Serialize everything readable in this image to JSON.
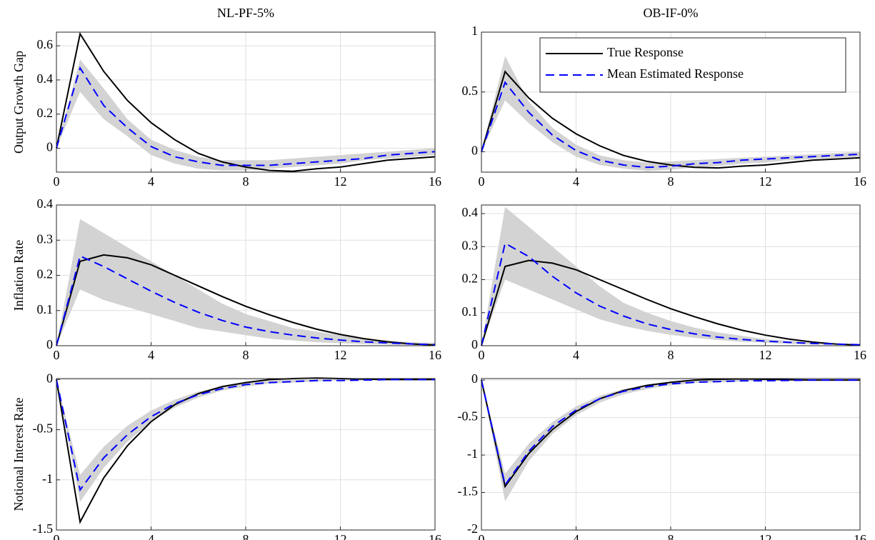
{
  "chart_data": [
    {
      "type": "line",
      "title": "NL-PF-5%",
      "ylabel": "Output Growth Gap",
      "x": [
        0,
        1,
        2,
        3,
        4,
        5,
        6,
        7,
        8,
        9,
        10,
        11,
        12,
        13,
        14,
        15,
        16
      ],
      "xlim": [
        0,
        16
      ],
      "xticks": [
        0,
        4,
        8,
        12,
        16
      ],
      "ylim": [
        -0.14,
        0.68
      ],
      "yticks": [
        0,
        0.2,
        0.4,
        0.6
      ],
      "grid": true,
      "band": {
        "color": "#d3d3d3",
        "lower": [
          0,
          0.33,
          0.17,
          0.07,
          -0.04,
          -0.09,
          -0.12,
          -0.13,
          -0.13,
          -0.12,
          -0.11,
          -0.1,
          -0.09,
          -0.07,
          -0.06,
          -0.05,
          -0.04
        ],
        "upper": [
          0,
          0.52,
          0.35,
          0.17,
          0.05,
          -0.01,
          -0.05,
          -0.07,
          -0.07,
          -0.07,
          -0.06,
          -0.05,
          -0.04,
          -0.03,
          -0.02,
          -0.01,
          0
        ]
      },
      "series": [
        {
          "color": "#000000",
          "dash": false,
          "values": [
            0,
            0.67,
            0.45,
            0.28,
            0.15,
            0.05,
            -0.03,
            -0.08,
            -0.11,
            -0.13,
            -0.135,
            -0.12,
            -0.11,
            -0.09,
            -0.07,
            -0.06,
            -0.05
          ]
        },
        {
          "color": "#0000ff",
          "dash": true,
          "values": [
            0,
            0.47,
            0.25,
            0.12,
            0.01,
            -0.05,
            -0.08,
            -0.1,
            -0.1,
            -0.1,
            -0.09,
            -0.08,
            -0.07,
            -0.06,
            -0.04,
            -0.03,
            -0.02
          ]
        }
      ]
    },
    {
      "type": "line",
      "title": "OB-IF-0%",
      "x": [
        0,
        1,
        2,
        3,
        4,
        5,
        6,
        7,
        8,
        9,
        10,
        11,
        12,
        13,
        14,
        15,
        16
      ],
      "xlim": [
        0,
        16
      ],
      "xticks": [
        0,
        4,
        8,
        12,
        16
      ],
      "ylim": [
        -0.17,
        1
      ],
      "yticks": [
        0,
        0.5,
        1
      ],
      "grid": true,
      "legend": "upper right",
      "band": {
        "color": "#d3d3d3",
        "lower": [
          0,
          0.43,
          0.24,
          0.08,
          -0.04,
          -0.11,
          -0.14,
          -0.16,
          -0.15,
          -0.13,
          -0.12,
          -0.1,
          -0.09,
          -0.07,
          -0.06,
          -0.05,
          -0.04
        ],
        "upper": [
          0,
          0.8,
          0.42,
          0.2,
          0.06,
          -0.03,
          -0.07,
          -0.09,
          -0.08,
          -0.07,
          -0.06,
          -0.05,
          -0.04,
          -0.03,
          -0.02,
          -0.01,
          0
        ]
      },
      "series": [
        {
          "name": "True Response",
          "color": "#000000",
          "dash": false,
          "values": [
            0,
            0.67,
            0.45,
            0.28,
            0.15,
            0.05,
            -0.03,
            -0.08,
            -0.11,
            -0.13,
            -0.135,
            -0.12,
            -0.11,
            -0.09,
            -0.07,
            -0.06,
            -0.05
          ]
        },
        {
          "name": "Mean Estimated Response",
          "color": "#0000ff",
          "dash": true,
          "values": [
            0,
            0.58,
            0.33,
            0.14,
            0.01,
            -0.07,
            -0.11,
            -0.13,
            -0.12,
            -0.1,
            -0.09,
            -0.07,
            -0.06,
            -0.05,
            -0.04,
            -0.03,
            -0.02
          ]
        }
      ]
    },
    {
      "type": "line",
      "ylabel": "Inflation Rate",
      "x": [
        0,
        1,
        2,
        3,
        4,
        5,
        6,
        7,
        8,
        9,
        10,
        11,
        12,
        13,
        14,
        15,
        16
      ],
      "xlim": [
        0,
        16
      ],
      "xticks": [
        0,
        4,
        8,
        12,
        16
      ],
      "ylim": [
        0,
        0.4
      ],
      "yticks": [
        0,
        0.1,
        0.2,
        0.3,
        0.4
      ],
      "grid": true,
      "band": {
        "color": "#d3d3d3",
        "lower": [
          0,
          0.16,
          0.13,
          0.11,
          0.09,
          0.07,
          0.05,
          0.04,
          0.03,
          0.02,
          0.015,
          0.01,
          0.007,
          0.005,
          0.003,
          0.002,
          0.001
        ],
        "upper": [
          0,
          0.36,
          0.32,
          0.28,
          0.24,
          0.2,
          0.16,
          0.12,
          0.09,
          0.07,
          0.05,
          0.04,
          0.03,
          0.02,
          0.015,
          0.01,
          0.008
        ]
      },
      "series": [
        {
          "color": "#000000",
          "dash": false,
          "values": [
            0,
            0.24,
            0.258,
            0.25,
            0.23,
            0.2,
            0.17,
            0.14,
            0.112,
            0.088,
            0.066,
            0.047,
            0.032,
            0.02,
            0.011,
            0.005,
            0.002
          ]
        },
        {
          "color": "#0000ff",
          "dash": true,
          "values": [
            0,
            0.255,
            0.225,
            0.19,
            0.155,
            0.123,
            0.095,
            0.072,
            0.053,
            0.04,
            0.03,
            0.022,
            0.016,
            0.011,
            0.008,
            0.005,
            0.003
          ]
        }
      ]
    },
    {
      "type": "line",
      "x": [
        0,
        1,
        2,
        3,
        4,
        5,
        6,
        7,
        8,
        9,
        10,
        11,
        12,
        13,
        14,
        15,
        16
      ],
      "xlim": [
        0,
        16
      ],
      "xticks": [
        0,
        4,
        8,
        12,
        16
      ],
      "ylim": [
        0,
        0.426
      ],
      "yticks": [
        0,
        0.1,
        0.2,
        0.3,
        0.4
      ],
      "grid": true,
      "band": {
        "color": "#d3d3d3",
        "lower": [
          0,
          0.2,
          0.17,
          0.14,
          0.11,
          0.08,
          0.06,
          0.045,
          0.033,
          0.024,
          0.017,
          0.012,
          0.009,
          0.006,
          0.004,
          0.003,
          0.002
        ],
        "upper": [
          0,
          0.42,
          0.36,
          0.3,
          0.24,
          0.18,
          0.13,
          0.1,
          0.075,
          0.055,
          0.04,
          0.03,
          0.02,
          0.015,
          0.01,
          0.007,
          0.005
        ]
      },
      "series": [
        {
          "color": "#000000",
          "dash": false,
          "values": [
            0,
            0.24,
            0.258,
            0.25,
            0.23,
            0.2,
            0.17,
            0.14,
            0.112,
            0.088,
            0.066,
            0.047,
            0.032,
            0.02,
            0.011,
            0.005,
            0.002
          ]
        },
        {
          "color": "#0000ff",
          "dash": true,
          "values": [
            0,
            0.31,
            0.27,
            0.21,
            0.16,
            0.12,
            0.09,
            0.066,
            0.049,
            0.036,
            0.026,
            0.019,
            0.014,
            0.01,
            0.007,
            0.005,
            0.003
          ]
        }
      ]
    },
    {
      "type": "line",
      "ylabel": "Notional Interest Rate",
      "x": [
        0,
        1,
        2,
        3,
        4,
        5,
        6,
        7,
        8,
        9,
        10,
        11,
        12,
        13,
        14,
        15,
        16
      ],
      "xlim": [
        0,
        16
      ],
      "xticks": [
        0,
        4,
        8,
        12,
        16
      ],
      "ylim": [
        -1.5,
        0.01
      ],
      "yticks": [
        -1.5,
        -1,
        -0.5,
        0
      ],
      "grid": true,
      "band": {
        "color": "#d3d3d3",
        "lower": [
          0,
          -1.22,
          -0.88,
          -0.62,
          -0.42,
          -0.28,
          -0.18,
          -0.11,
          -0.07,
          -0.04,
          -0.03,
          -0.02,
          -0.01,
          -0.01,
          -0.005,
          0,
          0
        ],
        "upper": [
          0,
          -0.95,
          -0.67,
          -0.46,
          -0.31,
          -0.2,
          -0.12,
          -0.07,
          -0.03,
          -0.01,
          0,
          0,
          0,
          0,
          0,
          0,
          0
        ]
      },
      "series": [
        {
          "color": "#000000",
          "dash": false,
          "values": [
            0,
            -1.42,
            -0.98,
            -0.66,
            -0.42,
            -0.25,
            -0.14,
            -0.07,
            -0.03,
            0,
            0.01,
            0.015,
            0.01,
            0.005,
            0,
            0,
            0
          ]
        },
        {
          "color": "#0000ff",
          "dash": true,
          "values": [
            0,
            -1.1,
            -0.78,
            -0.55,
            -0.37,
            -0.24,
            -0.15,
            -0.09,
            -0.05,
            -0.03,
            -0.02,
            -0.01,
            -0.01,
            -0.005,
            0,
            0,
            0
          ]
        }
      ]
    },
    {
      "type": "line",
      "x": [
        0,
        1,
        2,
        3,
        4,
        5,
        6,
        7,
        8,
        9,
        10,
        11,
        12,
        13,
        14,
        15,
        16
      ],
      "xlim": [
        0,
        16
      ],
      "xticks": [
        0,
        4,
        8,
        12,
        16
      ],
      "ylim": [
        -2,
        0.02
      ],
      "yticks": [
        -2,
        -1.5,
        -1,
        -0.5,
        0
      ],
      "grid": true,
      "band": {
        "color": "#d3d3d3",
        "lower": [
          0,
          -1.62,
          -1.08,
          -0.72,
          -0.47,
          -0.3,
          -0.19,
          -0.12,
          -0.07,
          -0.04,
          -0.03,
          -0.02,
          -0.01,
          -0.01,
          0,
          0,
          0
        ],
        "upper": [
          0,
          -1.25,
          -0.85,
          -0.56,
          -0.35,
          -0.21,
          -0.12,
          -0.07,
          -0.03,
          -0.01,
          0,
          0,
          0,
          0,
          0,
          0,
          0
        ]
      },
      "series": [
        {
          "color": "#000000",
          "dash": false,
          "values": [
            0,
            -1.42,
            -0.98,
            -0.66,
            -0.42,
            -0.25,
            -0.14,
            -0.07,
            -0.03,
            0,
            0.01,
            0.015,
            0.01,
            0.005,
            0,
            0,
            0
          ]
        },
        {
          "color": "#0000ff",
          "dash": true,
          "values": [
            0,
            -1.4,
            -0.95,
            -0.62,
            -0.4,
            -0.25,
            -0.15,
            -0.09,
            -0.05,
            -0.03,
            -0.02,
            -0.01,
            -0.01,
            -0.005,
            0,
            0,
            0
          ]
        }
      ]
    }
  ]
}
